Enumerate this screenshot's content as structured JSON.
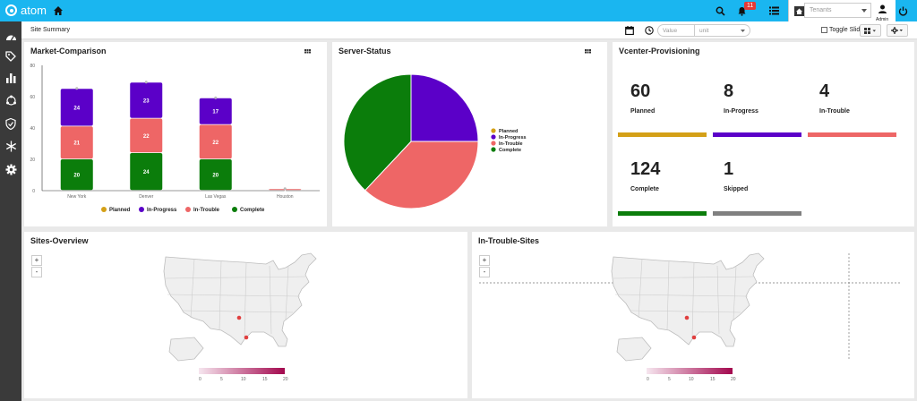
{
  "app": {
    "name": "atom"
  },
  "topbar": {
    "notification_count": "11",
    "tenant_placeholder": "Tenants",
    "user_label": "Admin"
  },
  "subheader": {
    "title": "Site Summary",
    "value_placeholder": "Value",
    "unit_placeholder": "unit",
    "toggle_label": "Toggle Slideshow"
  },
  "panels": {
    "market": {
      "title": "Market-Comparison"
    },
    "server": {
      "title": "Server-Status"
    },
    "vcenter": {
      "title": "Vcenter-Provisioning"
    },
    "sites": {
      "title": "Sites-Overview"
    },
    "trouble": {
      "title": "In-Trouble-Sites"
    }
  },
  "colors": {
    "planned": "#d4a017",
    "in_progress": "#5b00c8",
    "in_trouble": "#ee6666",
    "complete": "#0b7d0b",
    "skipped": "#808080",
    "accent": "#1ab6f0"
  },
  "vcenter_stats": [
    {
      "value": "60",
      "label": "Planned",
      "color": "#d4a017"
    },
    {
      "value": "8",
      "label": "In-Progress",
      "color": "#5b00c8"
    },
    {
      "value": "4",
      "label": "In-Trouble",
      "color": "#ee6666"
    },
    {
      "value": "124",
      "label": "Complete",
      "color": "#0b7d0b"
    },
    {
      "value": "1",
      "label": "Skipped",
      "color": "#808080"
    }
  ],
  "map_legend_ticks": [
    "0",
    "5",
    "10",
    "15",
    "20"
  ],
  "chart_data": [
    {
      "type": "bar",
      "stacked": true,
      "categories": [
        "New York",
        "Denver",
        "Las Vegas",
        "Houston"
      ],
      "ylim": [
        0,
        80
      ],
      "yticks": [
        0,
        20,
        40,
        60,
        80
      ],
      "legend": "bottom",
      "series": [
        {
          "name": "Complete",
          "color": "#0b7d0b",
          "values": [
            20,
            24,
            20,
            0
          ]
        },
        {
          "name": "In-Trouble",
          "color": "#ee6666",
          "values": [
            21,
            22,
            22,
            1
          ]
        },
        {
          "name": "In-Progress",
          "color": "#5b00c8",
          "values": [
            24,
            23,
            17,
            0
          ]
        },
        {
          "name": "Planned",
          "color": "#d4a017",
          "values": [
            0,
            0,
            0,
            0
          ]
        }
      ],
      "data_labels": [
        [
          "20",
          "21",
          "24"
        ],
        [
          "24",
          "22",
          "23"
        ],
        [
          "20",
          "22",
          "17"
        ],
        [
          "",
          "1",
          ""
        ]
      ],
      "legend_order": [
        "Planned",
        "In-Progress",
        "In-Trouble",
        "Complete"
      ]
    },
    {
      "type": "pie",
      "legend": "right",
      "slices": [
        {
          "name": "Planned",
          "color": "#d4a017",
          "value": 0
        },
        {
          "name": "In-Progress",
          "color": "#5b00c8",
          "value": 25
        },
        {
          "name": "In-Trouble",
          "color": "#ee6666",
          "value": 37
        },
        {
          "name": "Complete",
          "color": "#0b7d0b",
          "value": 38
        }
      ]
    }
  ]
}
